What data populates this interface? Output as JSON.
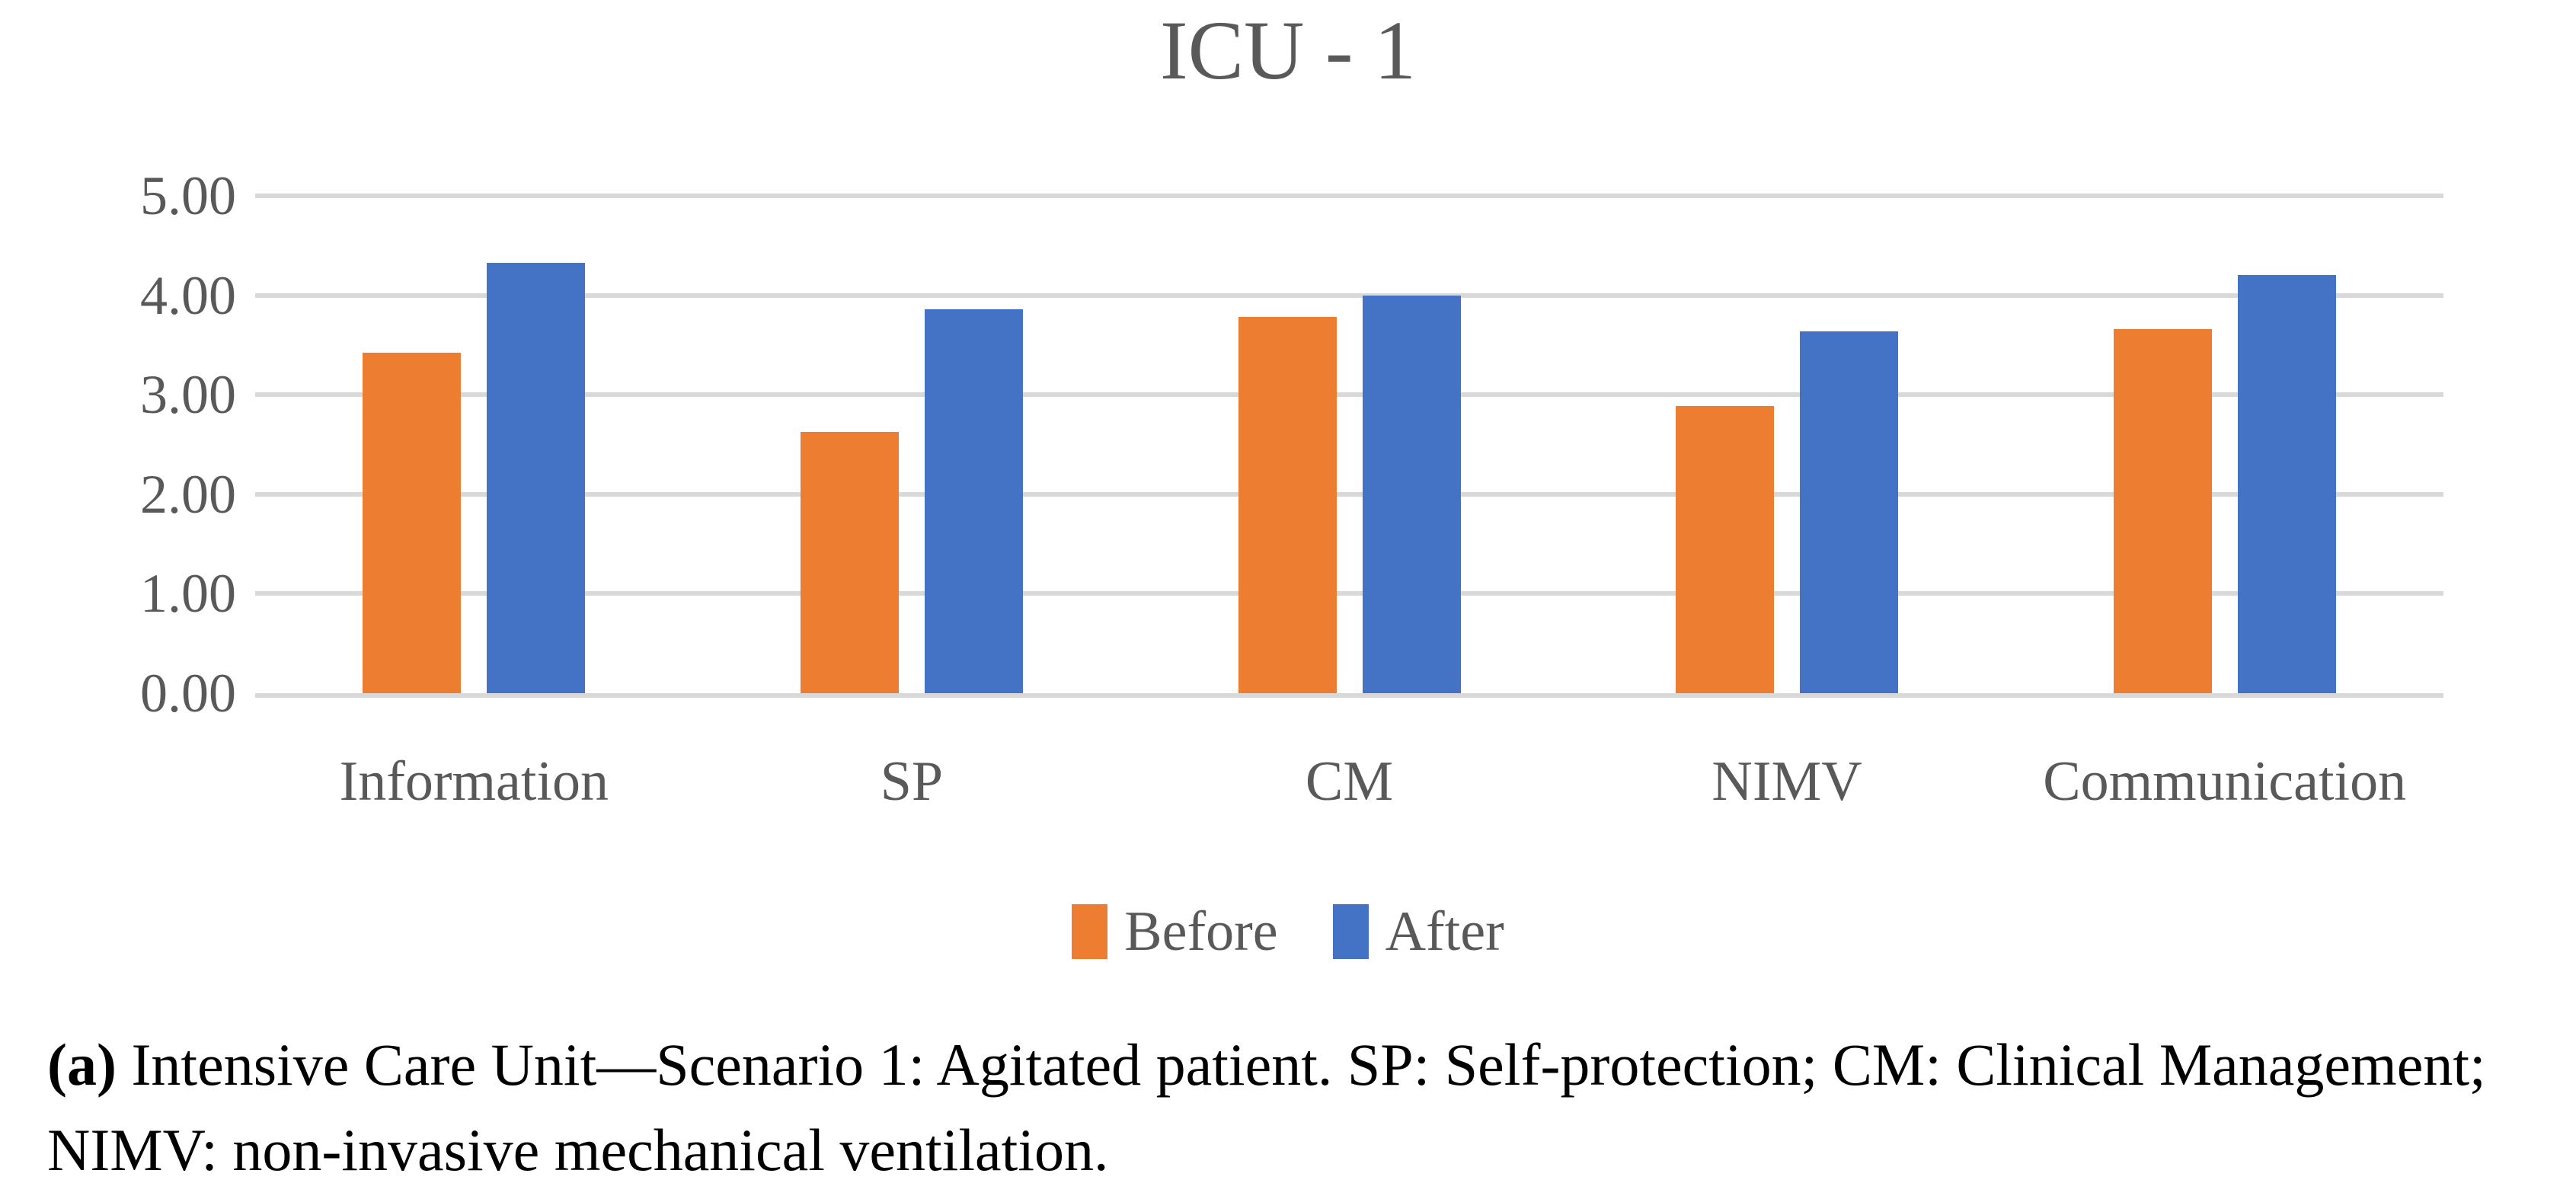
{
  "figure": {
    "title": "ICU - 1",
    "caption_label": "(a)",
    "caption_text": " Intensive Care Unit—Scenario 1: Agitated patient. SP: Self-protection; CM: Clinical Management; NIMV: non-invasive mechanical ventilation."
  },
  "colors": {
    "before": "#ED7D31",
    "after": "#4472C4",
    "gridline": "#D9D9D9",
    "chart_text": "#595959",
    "caption_text": "#000000"
  },
  "chart_data": {
    "type": "bar",
    "title": "ICU - 1",
    "categories": [
      "Information",
      "SP",
      "CM",
      "NIMV",
      "Communication"
    ],
    "series": [
      {
        "name": "Before",
        "color": "#ED7D31",
        "values": [
          3.42,
          2.63,
          3.78,
          2.89,
          3.66
        ]
      },
      {
        "name": "After",
        "color": "#4472C4",
        "values": [
          4.33,
          3.86,
          4.0,
          3.64,
          4.2
        ]
      }
    ],
    "xlabel": "",
    "ylabel": "",
    "ylim": [
      0,
      5
    ],
    "ytick_step": 1,
    "ytick_labels": [
      "0.00",
      "1.00",
      "2.00",
      "3.00",
      "4.00",
      "5.00"
    ],
    "grid": true,
    "legend_position": "bottom",
    "legend_labels": [
      "Before",
      "After"
    ]
  }
}
